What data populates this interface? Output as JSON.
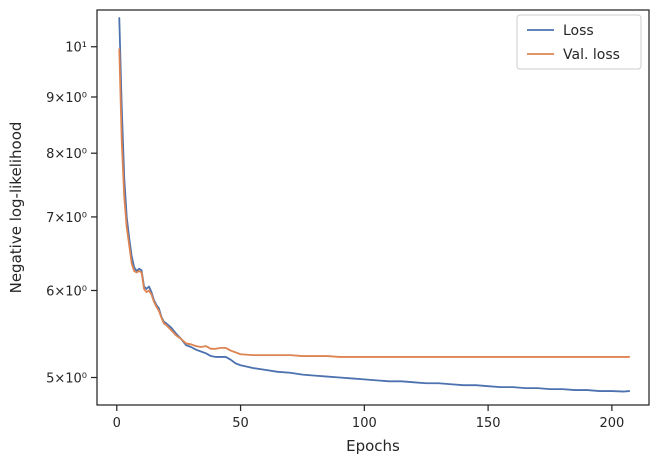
{
  "chart_data": {
    "type": "line",
    "xlabel": "Epochs",
    "ylabel": "Negative log-likelihood",
    "xlim": [
      -8,
      215
    ],
    "ylim": [
      4.72,
      10.8
    ],
    "yscale": "log",
    "grid": false,
    "legend_placement": "top-right",
    "x_ticks": [
      {
        "value": 0,
        "label": "0"
      },
      {
        "value": 50,
        "label": "50"
      },
      {
        "value": 100,
        "label": "100"
      },
      {
        "value": 150,
        "label": "150"
      },
      {
        "value": 200,
        "label": "200"
      }
    ],
    "y_ticks": [
      {
        "value": 5,
        "label": "5×10⁰"
      },
      {
        "value": 6,
        "label": "6×10⁰"
      },
      {
        "value": 7,
        "label": "7×10⁰"
      },
      {
        "value": 8,
        "label": "8×10⁰"
      },
      {
        "value": 9,
        "label": "9×10⁰"
      },
      {
        "value": 10,
        "label": "10¹"
      }
    ],
    "series": [
      {
        "name": "Loss",
        "color": "#4c72b0",
        "points": [
          [
            1,
            10.62
          ],
          [
            2,
            8.8
          ],
          [
            3,
            7.6
          ],
          [
            4,
            7.0
          ],
          [
            5,
            6.7
          ],
          [
            6,
            6.45
          ],
          [
            7,
            6.3
          ],
          [
            8,
            6.25
          ],
          [
            9,
            6.28
          ],
          [
            10,
            6.26
          ],
          [
            11,
            6.05
          ],
          [
            12,
            6.02
          ],
          [
            13,
            6.05
          ],
          [
            14,
            5.98
          ],
          [
            15,
            5.88
          ],
          [
            16,
            5.82
          ],
          [
            17,
            5.78
          ],
          [
            18,
            5.68
          ],
          [
            19,
            5.62
          ],
          [
            20,
            5.6
          ],
          [
            22,
            5.55
          ],
          [
            24,
            5.48
          ],
          [
            26,
            5.42
          ],
          [
            28,
            5.35
          ],
          [
            30,
            5.33
          ],
          [
            32,
            5.3
          ],
          [
            34,
            5.28
          ],
          [
            36,
            5.26
          ],
          [
            38,
            5.23
          ],
          [
            40,
            5.22
          ],
          [
            42,
            5.22
          ],
          [
            44,
            5.22
          ],
          [
            46,
            5.19
          ],
          [
            48,
            5.15
          ],
          [
            50,
            5.13
          ],
          [
            55,
            5.1
          ],
          [
            60,
            5.08
          ],
          [
            65,
            5.06
          ],
          [
            70,
            5.05
          ],
          [
            75,
            5.03
          ],
          [
            80,
            5.02
          ],
          [
            85,
            5.01
          ],
          [
            90,
            5.0
          ],
          [
            95,
            4.99
          ],
          [
            100,
            4.98
          ],
          [
            105,
            4.97
          ],
          [
            110,
            4.96
          ],
          [
            115,
            4.96
          ],
          [
            120,
            4.95
          ],
          [
            125,
            4.94
          ],
          [
            130,
            4.94
          ],
          [
            135,
            4.93
          ],
          [
            140,
            4.92
          ],
          [
            145,
            4.92
          ],
          [
            150,
            4.91
          ],
          [
            155,
            4.9
          ],
          [
            160,
            4.9
          ],
          [
            165,
            4.89
          ],
          [
            170,
            4.89
          ],
          [
            175,
            4.88
          ],
          [
            180,
            4.88
          ],
          [
            185,
            4.87
          ],
          [
            190,
            4.87
          ],
          [
            195,
            4.86
          ],
          [
            200,
            4.86
          ],
          [
            205,
            4.855
          ],
          [
            207,
            4.86
          ]
        ]
      },
      {
        "name": "Val. loss",
        "color": "#dd8452",
        "points": [
          [
            1,
            9.95
          ],
          [
            2,
            8.2
          ],
          [
            3,
            7.3
          ],
          [
            4,
            6.85
          ],
          [
            5,
            6.6
          ],
          [
            6,
            6.35
          ],
          [
            7,
            6.25
          ],
          [
            8,
            6.23
          ],
          [
            9,
            6.25
          ],
          [
            10,
            6.23
          ],
          [
            11,
            6.02
          ],
          [
            12,
            5.98
          ],
          [
            13,
            6.0
          ],
          [
            14,
            5.95
          ],
          [
            15,
            5.86
          ],
          [
            16,
            5.8
          ],
          [
            17,
            5.75
          ],
          [
            18,
            5.67
          ],
          [
            19,
            5.6
          ],
          [
            20,
            5.58
          ],
          [
            22,
            5.52
          ],
          [
            24,
            5.46
          ],
          [
            26,
            5.42
          ],
          [
            28,
            5.37
          ],
          [
            30,
            5.36
          ],
          [
            32,
            5.34
          ],
          [
            34,
            5.33
          ],
          [
            36,
            5.34
          ],
          [
            38,
            5.31
          ],
          [
            40,
            5.31
          ],
          [
            42,
            5.32
          ],
          [
            44,
            5.32
          ],
          [
            46,
            5.29
          ],
          [
            48,
            5.27
          ],
          [
            50,
            5.25
          ],
          [
            55,
            5.24
          ],
          [
            60,
            5.24
          ],
          [
            65,
            5.24
          ],
          [
            70,
            5.24
          ],
          [
            75,
            5.23
          ],
          [
            80,
            5.23
          ],
          [
            85,
            5.23
          ],
          [
            90,
            5.22
          ],
          [
            95,
            5.22
          ],
          [
            100,
            5.22
          ],
          [
            105,
            5.22
          ],
          [
            110,
            5.22
          ],
          [
            115,
            5.22
          ],
          [
            120,
            5.22
          ],
          [
            125,
            5.22
          ],
          [
            130,
            5.22
          ],
          [
            135,
            5.22
          ],
          [
            140,
            5.22
          ],
          [
            145,
            5.22
          ],
          [
            150,
            5.22
          ],
          [
            155,
            5.22
          ],
          [
            160,
            5.22
          ],
          [
            165,
            5.22
          ],
          [
            170,
            5.22
          ],
          [
            175,
            5.22
          ],
          [
            180,
            5.22
          ],
          [
            185,
            5.22
          ],
          [
            190,
            5.22
          ],
          [
            195,
            5.22
          ],
          [
            200,
            5.22
          ],
          [
            205,
            5.22
          ],
          [
            207,
            5.22
          ]
        ]
      }
    ]
  }
}
